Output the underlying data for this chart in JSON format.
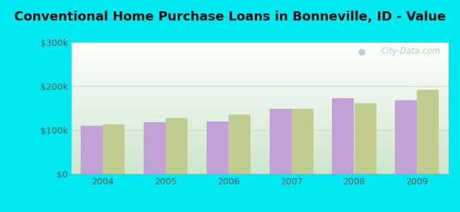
{
  "title": "Conventional Home Purchase Loans in Bonneville, ID - Value",
  "years": [
    2004,
    2005,
    2006,
    2007,
    2008,
    2009
  ],
  "hmda_values": [
    110000,
    117000,
    120000,
    148000,
    172000,
    168000
  ],
  "pmic_values": [
    113000,
    127000,
    135000,
    148000,
    162000,
    192000
  ],
  "hmda_color": "#c4a0d8",
  "pmic_color": "#c0cc90",
  "background_outer": "#00e8f0",
  "ylim": [
    0,
    300000
  ],
  "yticks": [
    0,
    100000,
    200000,
    300000
  ],
  "ytick_labels": [
    "$0",
    "$100k",
    "$200k",
    "$300k"
  ],
  "bar_width": 0.35,
  "title_fontsize": 13,
  "watermark": "City-Data.com",
  "grid_color": "#d8e8d0",
  "bg_top_right": "#f8fafa",
  "bg_bottom_left": "#d0e8d0"
}
